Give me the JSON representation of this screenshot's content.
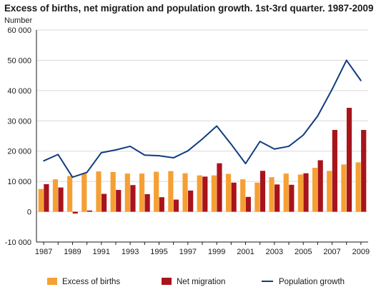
{
  "chart_data": {
    "type": "bar",
    "title": "Excess of births, net migration and population growth. 1st-3rd quarter. 1987-2009",
    "ylabel": "Number",
    "xlabel": "",
    "ylim": [
      -10000,
      60000
    ],
    "yticks": [
      -10000,
      0,
      10000,
      20000,
      30000,
      40000,
      50000,
      60000
    ],
    "ytick_labels": [
      "-10 000",
      "0",
      "10 000",
      "20 000",
      "30 000",
      "40 000",
      "50 000",
      "60 000"
    ],
    "categories": [
      "1987",
      "1988",
      "1989",
      "1990",
      "1991",
      "1992",
      "1993",
      "1994",
      "1995",
      "1996",
      "1997",
      "1998",
      "1999",
      "2000",
      "2001",
      "2002",
      "2003",
      "2004",
      "2005",
      "2006",
      "2007",
      "2008",
      "2009"
    ],
    "xtick_labels": [
      "1987",
      "1989",
      "1991",
      "1993",
      "1995",
      "1997",
      "1999",
      "2001",
      "2003",
      "2005",
      "2007",
      "2009"
    ],
    "grid": true,
    "legend_position": "bottom",
    "series": [
      {
        "name": "Excess of births",
        "type": "bar",
        "color": "#f5a034",
        "values": [
          7500,
          10700,
          11800,
          12600,
          13300,
          13100,
          12600,
          12600,
          13200,
          13400,
          12700,
          12000,
          12000,
          12500,
          10700,
          9600,
          11400,
          12600,
          12300,
          14500,
          13500,
          15600,
          16300
        ]
      },
      {
        "name": "Net migration",
        "type": "bar",
        "color": "#a8141c",
        "values": [
          9100,
          8000,
          -600,
          400,
          5900,
          7200,
          8800,
          5800,
          4800,
          4000,
          7000,
          11600,
          16000,
          9600,
          4900,
          13500,
          9000,
          8900,
          12700,
          17000,
          27000,
          34300,
          27000
        ]
      },
      {
        "name": "Population growth",
        "type": "line",
        "color": "#0f3d7f",
        "values": [
          16800,
          18900,
          11400,
          13000,
          19500,
          20400,
          21600,
          18700,
          18500,
          17800,
          20100,
          24000,
          28300,
          22300,
          15900,
          23200,
          20700,
          21600,
          25300,
          31600,
          40400,
          50000,
          43300
        ]
      }
    ]
  }
}
